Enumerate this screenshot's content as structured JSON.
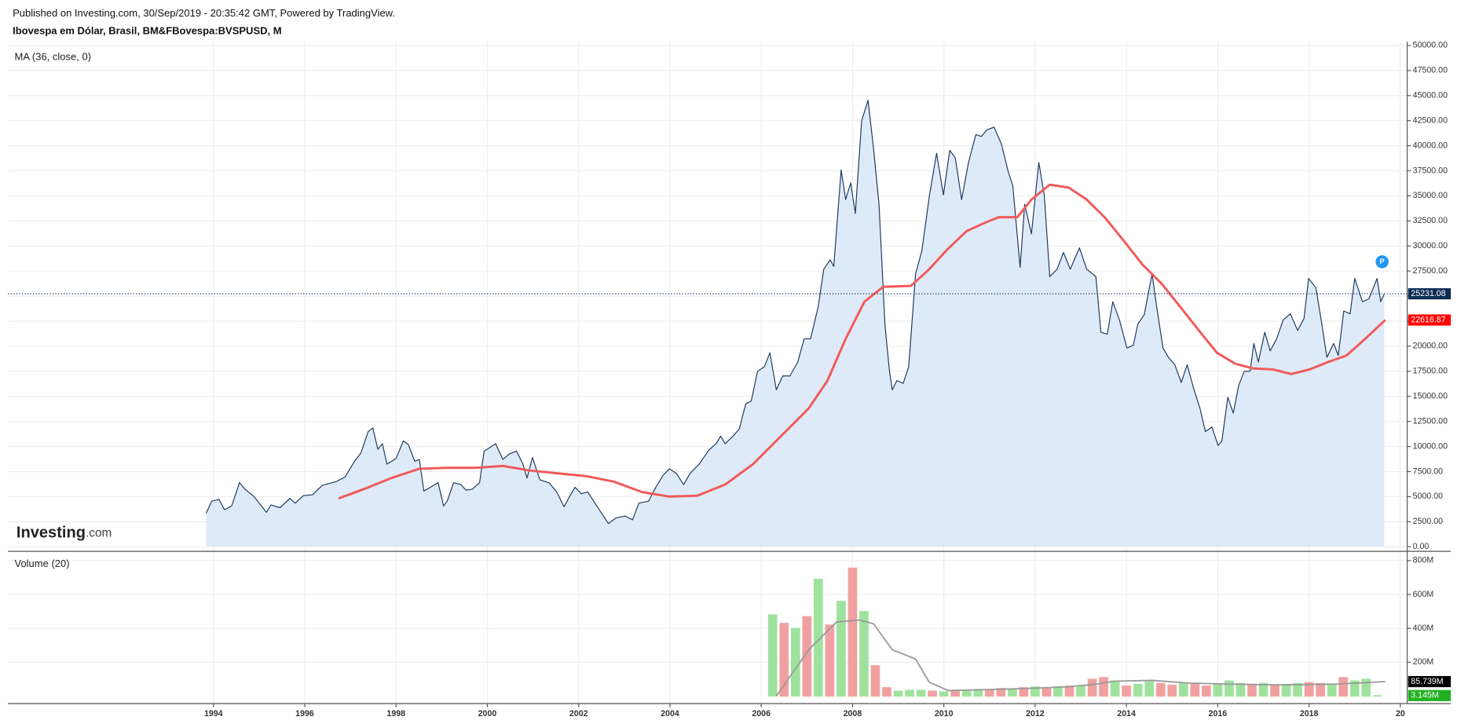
{
  "header": {
    "published": "Published on Investing.com, 30/Sep/2019 - 20:35:42 GMT, Powered by TradingView.",
    "symbol": "Ibovespa em Dólar, Brasil, BM&FBovespa:BVSPUSD, M"
  },
  "watermark": {
    "brand": "Investing",
    "suffix": ".com"
  },
  "badge": "P",
  "chart_data": [
    {
      "type": "line",
      "title": "MA (36, close, 0)",
      "xlim": [
        1989.5,
        2020.15
      ],
      "ylim": [
        -460,
        50000
      ],
      "grid": true,
      "yticks": [
        {
          "value": 0,
          "label": "0.00"
        },
        {
          "value": 2500,
          "label": "2500.00"
        },
        {
          "value": 5000,
          "label": "5000.00"
        },
        {
          "value": 7500,
          "label": "7500.00"
        },
        {
          "value": 10000,
          "label": "10000.00"
        },
        {
          "value": 12500,
          "label": "12500.00"
        },
        {
          "value": 15000,
          "label": "15000.00"
        },
        {
          "value": 17500,
          "label": "17500.00"
        },
        {
          "value": 20000,
          "label": "20000.00"
        },
        {
          "value": 22500,
          "label": "22500.00"
        },
        {
          "value": 25000,
          "label": "25000.00"
        },
        {
          "value": 27500,
          "label": "27500.00"
        },
        {
          "value": 30000,
          "label": "30000.00"
        },
        {
          "value": 32500,
          "label": "32500.00"
        },
        {
          "value": 35000,
          "label": "35000.00"
        },
        {
          "value": 37500,
          "label": "37500.00"
        },
        {
          "value": 40000,
          "label": "40000.00"
        },
        {
          "value": 42500,
          "label": "42500.00"
        },
        {
          "value": 45000,
          "label": "45000.00"
        },
        {
          "value": 47500,
          "label": "47500.00"
        },
        {
          "value": 50000,
          "label": "50000.00"
        }
      ],
      "series": [
        {
          "color": "#1d3a5f",
          "fill": "#dfeaf8",
          "x": [
            1993.84,
            1993.96,
            1994.12,
            1994.24,
            1994.4,
            1994.57,
            1994.69,
            1994.89,
            1995.16,
            1995.26,
            1995.46,
            1995.67,
            1995.79,
            1995.97,
            1996.17,
            1996.38,
            1996.68,
            1996.88,
            1997.09,
            1997.23,
            1997.39,
            1997.49,
            1997.6,
            1997.7,
            1997.8,
            1998.0,
            1998.16,
            1998.27,
            1998.41,
            1998.51,
            1998.61,
            1998.75,
            1998.92,
            1999.04,
            1999.12,
            1999.26,
            1999.42,
            1999.53,
            1999.67,
            1999.83,
            1999.93,
            2000.03,
            2000.18,
            2000.34,
            2000.48,
            2000.64,
            2000.78,
            2000.87,
            2000.99,
            2001.15,
            2001.35,
            2001.52,
            2001.68,
            2001.8,
            2001.92,
            2002.06,
            2002.2,
            2002.37,
            2002.53,
            2002.65,
            2002.82,
            2003.02,
            2003.18,
            2003.32,
            2003.53,
            2003.69,
            2003.85,
            2003.99,
            2004.14,
            2004.3,
            2004.44,
            2004.64,
            2004.85,
            2005.01,
            2005.11,
            2005.21,
            2005.38,
            2005.52,
            2005.66,
            2005.78,
            2005.92,
            2006.07,
            2006.19,
            2006.33,
            2006.47,
            2006.63,
            2006.8,
            2006.94,
            2007.08,
            2007.25,
            2007.37,
            2007.51,
            2007.59,
            2007.75,
            2007.85,
            2007.96,
            2008.06,
            2008.2,
            2008.34,
            2008.46,
            2008.58,
            2008.71,
            2008.81,
            2008.87,
            2008.97,
            2009.11,
            2009.23,
            2009.38,
            2009.52,
            2009.68,
            2009.84,
            2009.99,
            2010.13,
            2010.25,
            2010.39,
            2010.54,
            2010.7,
            2010.82,
            2010.94,
            2011.1,
            2011.26,
            2011.41,
            2011.51,
            2011.67,
            2011.77,
            2011.92,
            2012.08,
            2012.2,
            2012.32,
            2012.48,
            2012.62,
            2012.77,
            2012.97,
            2013.13,
            2013.33,
            2013.44,
            2013.58,
            2013.7,
            2013.85,
            2014.01,
            2014.15,
            2014.25,
            2014.39,
            2014.56,
            2014.66,
            2014.8,
            2014.92,
            2015.06,
            2015.2,
            2015.33,
            2015.47,
            2015.61,
            2015.73,
            2015.87,
            2016.01,
            2016.09,
            2016.22,
            2016.34,
            2016.46,
            2016.58,
            2016.71,
            2016.79,
            2016.89,
            2017.03,
            2017.15,
            2017.29,
            2017.43,
            2017.59,
            2017.75,
            2017.89,
            2017.99,
            2018.15,
            2018.29,
            2018.39,
            2018.54,
            2018.64,
            2018.76,
            2018.9,
            2019.0,
            2019.17,
            2019.31,
            2019.41,
            2019.49,
            2019.57,
            2019.65
          ],
          "values": [
            3333,
            4537,
            4722,
            3700,
            4074,
            6389,
            5740,
            5000,
            3426,
            4167,
            3889,
            4815,
            4352,
            5093,
            5185,
            6111,
            6481,
            6944,
            8519,
            9352,
            11481,
            11852,
            9722,
            10278,
            8241,
            8796,
            10556,
            10185,
            8519,
            8704,
            5556,
            5926,
            6389,
            4074,
            4537,
            6389,
            6204,
            5648,
            5741,
            6389,
            9537,
            9815,
            10278,
            8704,
            9259,
            9537,
            8241,
            6852,
            8889,
            6667,
            6389,
            5463,
            3981,
            5000,
            5926,
            5278,
            5463,
            4259,
            3148,
            2315,
            2870,
            3056,
            2685,
            4352,
            4537,
            5926,
            7130,
            7778,
            7315,
            6204,
            7315,
            8241,
            9630,
            10278,
            11019,
            10278,
            11019,
            11759,
            14259,
            14537,
            17500,
            17963,
            19352,
            15648,
            17037,
            17037,
            18426,
            20741,
            20741,
            23981,
            27685,
            28611,
            27963,
            37593,
            34630,
            36296,
            33241,
            42500,
            44537,
            39722,
            34167,
            22130,
            17500,
            15648,
            16574,
            16296,
            17963,
            27222,
            29537,
            34907,
            39259,
            35093,
            39537,
            38796,
            34630,
            38333,
            41111,
            40926,
            41574,
            41852,
            40185,
            37407,
            36019,
            27870,
            34167,
            31204,
            38333,
            35093,
            26944,
            27685,
            29352,
            27685,
            29815,
            27685,
            26944,
            21389,
            21204,
            24444,
            22593,
            19815,
            20093,
            22222,
            23148,
            27222,
            23981,
            19815,
            18889,
            18148,
            16389,
            18148,
            15833,
            13796,
            11481,
            11944,
            10093,
            10556,
            14907,
            13333,
            16111,
            17500,
            17500,
            20278,
            18426,
            21389,
            19537,
            20741,
            22593,
            23241,
            21574,
            22778,
            26759,
            25833,
            21944,
            18889,
            20278,
            19074,
            23519,
            23241,
            26759,
            24444,
            24722,
            25833,
            26759,
            24444,
            25231.08
          ]
        },
        {
          "color": "#f05a5a",
          "x": [
            1996.74,
            1997.29,
            1997.9,
            1998.51,
            1999.12,
            1999.73,
            2000.34,
            2000.95,
            2001.56,
            2002.17,
            2002.78,
            2003.38,
            2003.99,
            2004.6,
            2005.21,
            2005.82,
            2006.43,
            2007.04,
            2007.45,
            2007.85,
            2008.26,
            2008.67,
            2009.28,
            2009.68,
            2010.09,
            2010.5,
            2010.9,
            2011.2,
            2011.61,
            2011.92,
            2012.32,
            2012.73,
            2013.13,
            2013.54,
            2013.95,
            2014.35,
            2014.76,
            2015.17,
            2015.57,
            2015.98,
            2016.39,
            2016.79,
            2017.2,
            2017.61,
            2018.01,
            2018.42,
            2018.82,
            2019.23,
            2019.67
          ],
          "values": [
            4815,
            5741,
            6852,
            7778,
            7870,
            7870,
            8056,
            7593,
            7315,
            7037,
            6481,
            5463,
            5000,
            5093,
            6204,
            8241,
            11019,
            13796,
            16574,
            20741,
            24444,
            25926,
            26019,
            27685,
            29722,
            31481,
            32315,
            32870,
            32870,
            34630,
            36111,
            35833,
            34630,
            32778,
            30463,
            28148,
            26296,
            23981,
            21667,
            19352,
            18241,
            17778,
            17685,
            17222,
            17685,
            18426,
            19074,
            20741,
            22616.87
          ]
        }
      ],
      "markers": [
        {
          "value": 25231.08,
          "label": "25231.08",
          "color": "#0d2c54",
          "line": true
        },
        {
          "value": 22616.87,
          "label": "22616.87",
          "color": "#ff0000"
        }
      ]
    },
    {
      "type": "bar",
      "title": "Volume (20)",
      "xlim": [
        1989.5,
        2020.15
      ],
      "ylim": [
        -44,
        838
      ],
      "grid": true,
      "xticks": [
        1994,
        1996,
        1998,
        2000,
        2002,
        2004,
        2006,
        2008,
        2010,
        2012,
        2014,
        2016,
        2018,
        {
          "value": 2020,
          "label": "20"
        }
      ],
      "yticks": [
        {
          "value": 200,
          "label": "200M"
        },
        {
          "value": 400,
          "label": "400M"
        },
        {
          "value": 600,
          "label": "600M"
        },
        {
          "value": 800,
          "label": "800M"
        }
      ],
      "series": [
        {
          "x": [
            2006.25,
            2006.5,
            2006.75,
            2007,
            2007.25,
            2007.5,
            2007.75,
            2008,
            2008.25,
            2008.5,
            2008.75,
            2009,
            2009.25,
            2009.5,
            2009.75,
            2010,
            2010.25,
            2010.5,
            2010.75,
            2011,
            2011.25,
            2011.5,
            2011.75,
            2012,
            2012.25,
            2012.5,
            2012.75,
            2013,
            2013.25,
            2013.5,
            2013.75,
            2014,
            2014.25,
            2014.5,
            2014.75,
            2015,
            2015.25,
            2015.5,
            2015.75,
            2016,
            2016.25,
            2016.5,
            2016.75,
            2017,
            2017.25,
            2017.5,
            2017.75,
            2018,
            2018.25,
            2018.5,
            2018.75,
            2019,
            2019.25,
            2019.5
          ],
          "values": [
            480,
            430,
            400,
            470,
            690,
            420,
            560,
            756,
            500,
            180,
            50,
            30,
            35,
            35,
            30,
            25,
            35,
            35,
            40,
            40,
            45,
            40,
            50,
            55,
            50,
            55,
            60,
            60,
            100,
            110,
            90,
            60,
            70,
            85,
            75,
            65,
            75,
            70,
            60,
            70,
            90,
            75,
            70,
            75,
            65,
            70,
            75,
            80,
            75,
            70,
            110,
            90,
            100,
            3.145
          ],
          "colors": [
            "#9fe29f",
            "#f0a0a0",
            "#9fe29f",
            "#f0a0a0",
            "#9fe29f",
            "#f0a0a0",
            "#9fe29f",
            "#f0a0a0",
            "#9fe29f",
            "#f0a0a0",
            "#f0a0a0",
            "#9fe29f",
            "#9fe29f",
            "#9fe29f",
            "#f0a0a0",
            "#9fe29f",
            "#f0a0a0",
            "#9fe29f",
            "#9fe29f",
            "#f0a0a0",
            "#f0a0a0",
            "#9fe29f",
            "#f0a0a0",
            "#9fe29f",
            "#f0a0a0",
            "#9fe29f",
            "#f0a0a0",
            "#9fe29f",
            "#f0a0a0",
            "#f0a0a0",
            "#9fe29f",
            "#f0a0a0",
            "#9fe29f",
            "#9fe29f",
            "#f0a0a0",
            "#f0a0a0",
            "#9fe29f",
            "#f0a0a0",
            "#f0a0a0",
            "#9fe29f",
            "#9fe29f",
            "#9fe29f",
            "#f0a0a0",
            "#9fe29f",
            "#f0a0a0",
            "#9fe29f",
            "#9fe29f",
            "#f0a0a0",
            "#f0a0a0",
            "#9fe29f",
            "#f0a0a0",
            "#9fe29f",
            "#9fe29f",
            "#9fe29f"
          ]
        },
        {
          "style": "line",
          "color": "#999999",
          "x": [
            2006.33,
            2007.04,
            2007.65,
            2008.16,
            2008.46,
            2008.87,
            2009.38,
            2009.68,
            2010.09,
            2010.9,
            2011.71,
            2012.73,
            2013.34,
            2013.74,
            2014.56,
            2015.37,
            2016.18,
            2017.4,
            2018.62,
            2019.67
          ],
          "values": [
            0,
            274,
            438,
            449,
            427,
            274,
            219,
            82,
            33,
            38,
            44,
            55,
            71,
            88,
            93,
            77,
            71,
            66,
            71,
            85.739
          ]
        }
      ],
      "markers": [
        {
          "value": 85.739,
          "label": "85.739M",
          "color": "#000000"
        },
        {
          "value": 3.145,
          "label": "3.145M",
          "color": "#22b022"
        }
      ]
    }
  ]
}
